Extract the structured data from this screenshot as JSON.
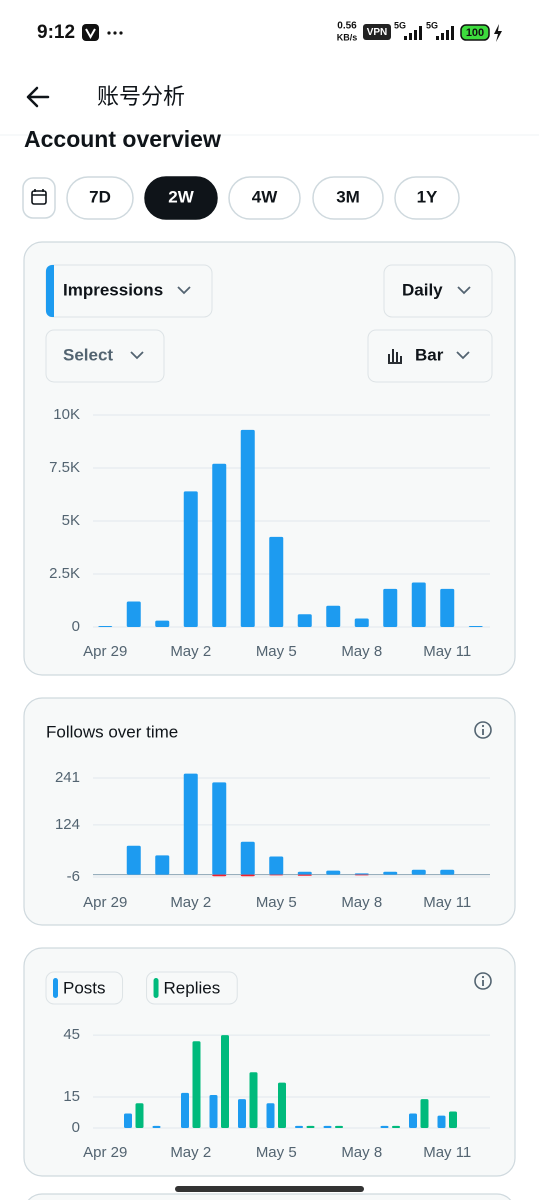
{
  "status_bar": {
    "time": "9:12",
    "speed": "0.56",
    "speed_unit": "KB/s",
    "vpn": "VPN",
    "network_1": "5G",
    "network_2": "5G",
    "battery": "100"
  },
  "header": {
    "title": "账号分析"
  },
  "section_title": "Account overview",
  "period_options": [
    "7D",
    "2W",
    "4W",
    "3M",
    "1Y"
  ],
  "selected_period": "2W",
  "controls": {
    "metric": "Impressions",
    "interval": "Daily",
    "compare": "Select",
    "chart_style": "Bar"
  },
  "chart_data": [
    {
      "type": "bar",
      "categories": [
        "Apr 29",
        null,
        null,
        "May 2",
        null,
        null,
        "May 5",
        null,
        null,
        "May 8",
        null,
        null,
        "May 11",
        null
      ],
      "series": [
        {
          "color": "#1d9bf0",
          "values": [
            50,
            1200,
            300,
            6400,
            7700,
            9300,
            4250,
            600,
            1000,
            400,
            1800,
            2100,
            1800,
            50
          ]
        }
      ],
      "ylim": [
        0,
        10000
      ],
      "yticks": [
        0,
        {
          "value": 2500,
          "label": "2.5K"
        },
        {
          "value": 5000,
          "label": "5K"
        },
        {
          "value": 7500,
          "label": "7.5K"
        },
        {
          "value": 10000,
          "label": "10K"
        }
      ],
      "grid": true
    },
    {
      "type": "bar",
      "title": "Follows over time",
      "categories": [
        "Apr 29",
        null,
        null,
        "May 2",
        null,
        null,
        "May 5",
        null,
        null,
        "May 8",
        null,
        null,
        "May 11",
        null
      ],
      "series": [
        {
          "color": "#1d9bf0",
          "values": [
            0,
            72,
            48,
            252,
            230,
            82,
            45,
            7,
            10,
            3,
            7,
            12,
            12,
            0
          ]
        },
        {
          "color": "#f4212e",
          "values": [
            0,
            0,
            0,
            0,
            -4,
            -4,
            -2,
            -3,
            0,
            -2,
            0,
            0,
            0,
            0
          ]
        }
      ],
      "ylim": [
        -6,
        255
      ],
      "yticks": [
        -6,
        124,
        241
      ],
      "grid": true
    },
    {
      "type": "grouped_bar",
      "categories": [
        "Apr 29",
        null,
        null,
        "May 2",
        null,
        null,
        "May 5",
        null,
        null,
        "May 8",
        null,
        null,
        "May 11",
        null
      ],
      "series": [
        {
          "name": "Posts",
          "color": "#1d9bf0",
          "values": [
            0,
            7,
            1,
            17,
            16,
            14,
            12,
            1,
            1,
            0,
            1,
            7,
            6,
            0
          ]
        },
        {
          "name": "Replies",
          "color": "#00ba7c",
          "values": [
            0,
            12,
            0,
            42,
            45,
            27,
            22,
            1,
            1,
            0,
            1,
            14,
            8,
            0
          ]
        }
      ],
      "ylim": [
        0,
        46
      ],
      "yticks": [
        0,
        15,
        45
      ],
      "grid": true
    }
  ]
}
